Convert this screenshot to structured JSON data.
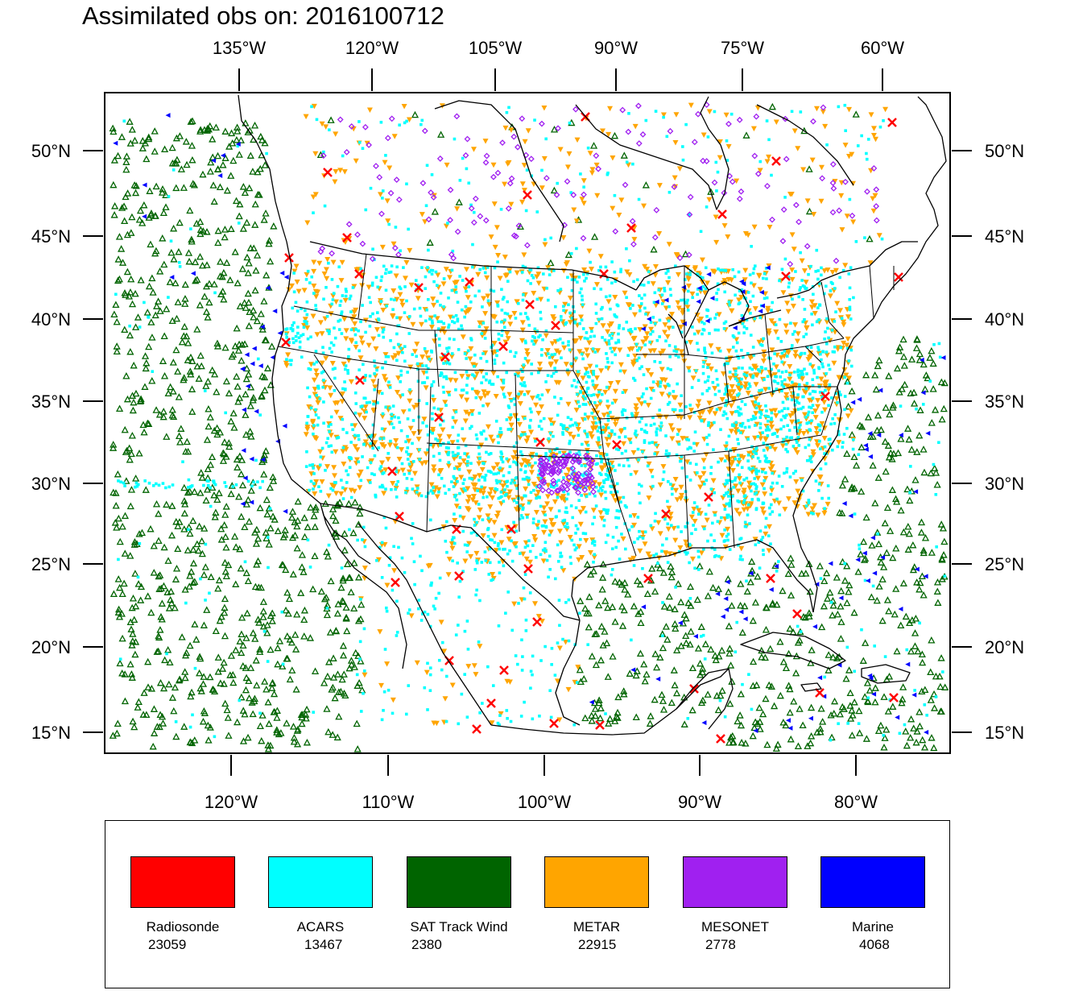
{
  "title": "Assimilated obs on: 2016100712",
  "axes": {
    "top_lon_labels": [
      "135°W",
      "120°W",
      "105°W",
      "90°W",
      "75°W",
      "60°W"
    ],
    "bottom_lon_labels": [
      "120°W",
      "110°W",
      "100°W",
      "90°W",
      "80°W"
    ],
    "lat_labels": [
      "50°N",
      "45°N",
      "40°N",
      "35°N",
      "30°N",
      "25°N",
      "20°N",
      "15°N"
    ]
  },
  "colors": {
    "radiosonde": "#ff0000",
    "acars": "#00ffff",
    "sat_track_wind": "#006400",
    "metar": "#ffa500",
    "mesonet": "#a020f0",
    "marine": "#0000ff",
    "map_lines": "#000000"
  },
  "legend": [
    {
      "name": "Radiosonde",
      "count": "23059",
      "color": "#ff0000",
      "marker": "x-cross"
    },
    {
      "name": "ACARS",
      "count": "13467",
      "color": "#00ffff",
      "marker": "square"
    },
    {
      "name": "SAT Track Wind",
      "count": "2380",
      "color": "#006400",
      "marker": "triangle-up"
    },
    {
      "name": "METAR",
      "count": "22915",
      "color": "#ffa500",
      "marker": "triangle-down"
    },
    {
      "name": "MESONET",
      "count": "2778",
      "color": "#a020f0",
      "marker": "diamond"
    },
    {
      "name": "Marine",
      "count": "4068",
      "color": "#0000ff",
      "marker": "triangle-left"
    }
  ]
}
